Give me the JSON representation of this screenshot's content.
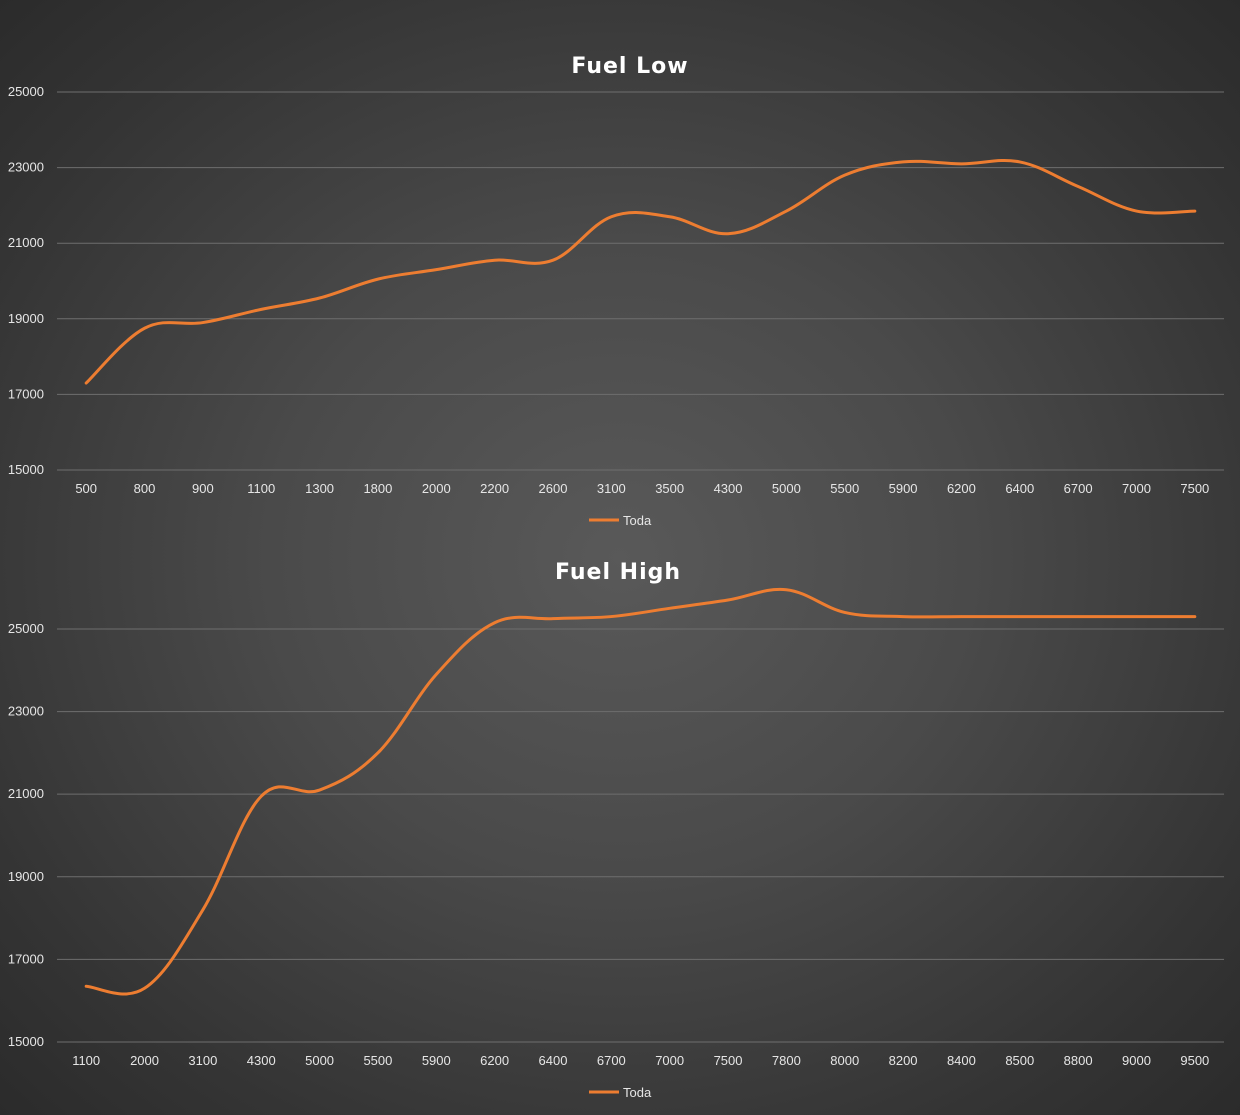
{
  "chart_data": [
    {
      "type": "line",
      "title": "Fuel Low",
      "categories": [
        "500",
        "800",
        "900",
        "1100",
        "1300",
        "1800",
        "2000",
        "2200",
        "2600",
        "3100",
        "3500",
        "4300",
        "5000",
        "5500",
        "5900",
        "6200",
        "6400",
        "6700",
        "7000",
        "7500"
      ],
      "series": [
        {
          "name": "Toda",
          "color": "#ed7d31",
          "values": [
            17300,
            18750,
            18900,
            19250,
            19550,
            20050,
            20300,
            20550,
            20550,
            21700,
            21700,
            21250,
            21850,
            22800,
            23150,
            23100,
            23150,
            22500,
            21850,
            21850
          ]
        }
      ],
      "yticks": [
        "15000",
        "17000",
        "19000",
        "21000",
        "23000",
        "25000"
      ],
      "ylim": [
        15000,
        25000
      ],
      "grid": true,
      "legend": "bottom"
    },
    {
      "type": "line",
      "title": "Fuel High",
      "categories": [
        "1100",
        "2000",
        "3100",
        "4300",
        "5000",
        "5500",
        "5900",
        "6200",
        "6400",
        "6700",
        "7000",
        "7500",
        "7800",
        "8000",
        "8200",
        "8400",
        "8500",
        "8800",
        "9000",
        "9500"
      ],
      "series": [
        {
          "name": "Toda",
          "color": "#ed7d31",
          "values": [
            16350,
            16300,
            18200,
            20950,
            21100,
            22000,
            23900,
            25150,
            25250,
            25300,
            25500,
            25700,
            25950,
            25400,
            25300,
            25300,
            25300,
            25300,
            25300,
            25300
          ]
        }
      ],
      "yticks": [
        "15000",
        "17000",
        "19000",
        "21000",
        "23000",
        "25000"
      ],
      "ylim": [
        15000,
        26500
      ],
      "grid": true,
      "legend": "bottom"
    }
  ]
}
